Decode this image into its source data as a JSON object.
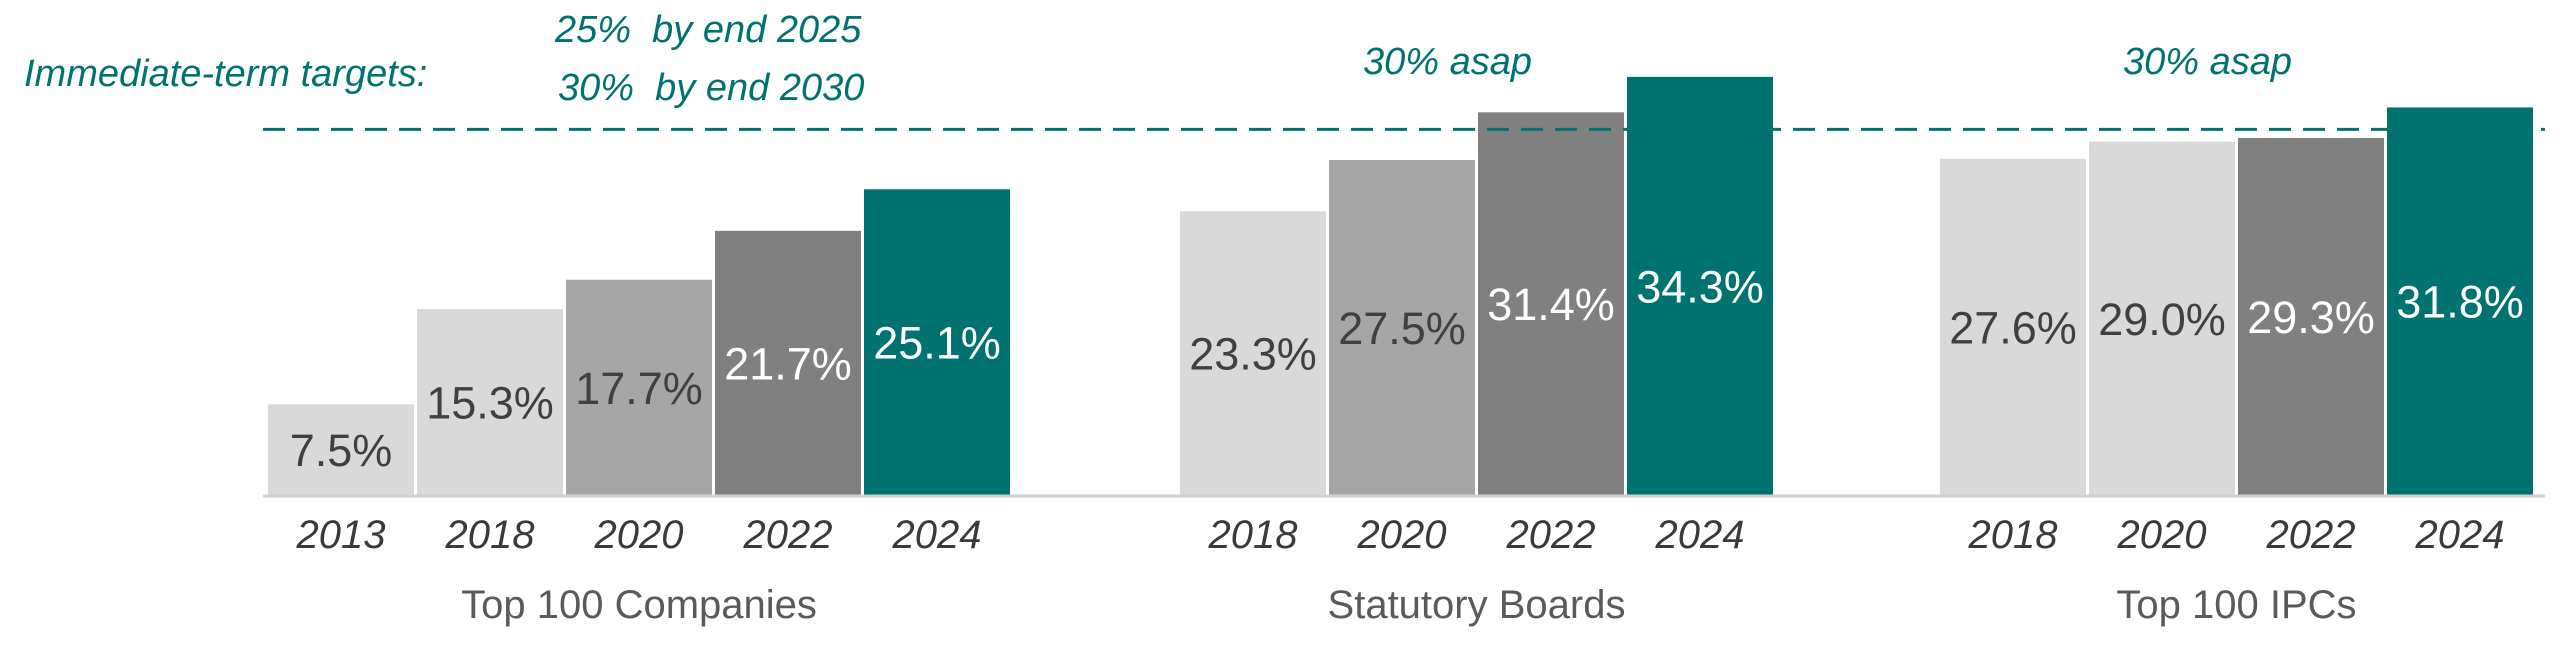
{
  "chart_data": {
    "type": "bar",
    "groups": [
      {
        "name": "Top 100 Companies",
        "bars": [
          {
            "year": "2013",
            "value": 7.5,
            "label": "7.5%",
            "shade": "lightest"
          },
          {
            "year": "2018",
            "value": 15.3,
            "label": "15.3%",
            "shade": "light"
          },
          {
            "year": "2020",
            "value": 17.7,
            "label": "17.7%",
            "shade": "mid"
          },
          {
            "year": "2022",
            "value": 21.7,
            "label": "21.7%",
            "shade": "dark"
          },
          {
            "year": "2024",
            "value": 25.1,
            "label": "25.1%",
            "shade": "accent"
          }
        ]
      },
      {
        "name": "Statutory Boards",
        "target": "30% asap",
        "bars": [
          {
            "year": "2018",
            "value": 23.3,
            "label": "23.3%",
            "shade": "light"
          },
          {
            "year": "2020",
            "value": 27.5,
            "label": "27.5%",
            "shade": "mid"
          },
          {
            "year": "2022",
            "value": 31.4,
            "label": "31.4%",
            "shade": "dark"
          },
          {
            "year": "2024",
            "value": 34.3,
            "label": "34.3%",
            "shade": "accent"
          }
        ]
      },
      {
        "name": "Top 100 IPCs",
        "target": "30% asap",
        "bars": [
          {
            "year": "2018",
            "value": 27.6,
            "label": "27.6%",
            "shade": "lightest"
          },
          {
            "year": "2020",
            "value": 29.0,
            "label": "29.0%",
            "shade": "light"
          },
          {
            "year": "2022",
            "value": 29.3,
            "label": "29.3%",
            "shade": "dark"
          },
          {
            "year": "2024",
            "value": 31.8,
            "label": "31.8%",
            "shade": "accent"
          }
        ]
      }
    ],
    "target_line": 30,
    "targets_label": "Immediate-term targets:",
    "targets_lines": [
      "25%  by end 2025",
      "30%  by end 2030"
    ],
    "ylim": [
      0,
      36.5
    ],
    "colors": {
      "lightest": "#d9d9d9",
      "light": "#d9d9d9",
      "mid": "#a6a6a6",
      "dark": "#808080",
      "accent": "#007370",
      "target": "#007370",
      "label_dark": "#404040",
      "label_light": "#ffffff"
    }
  }
}
